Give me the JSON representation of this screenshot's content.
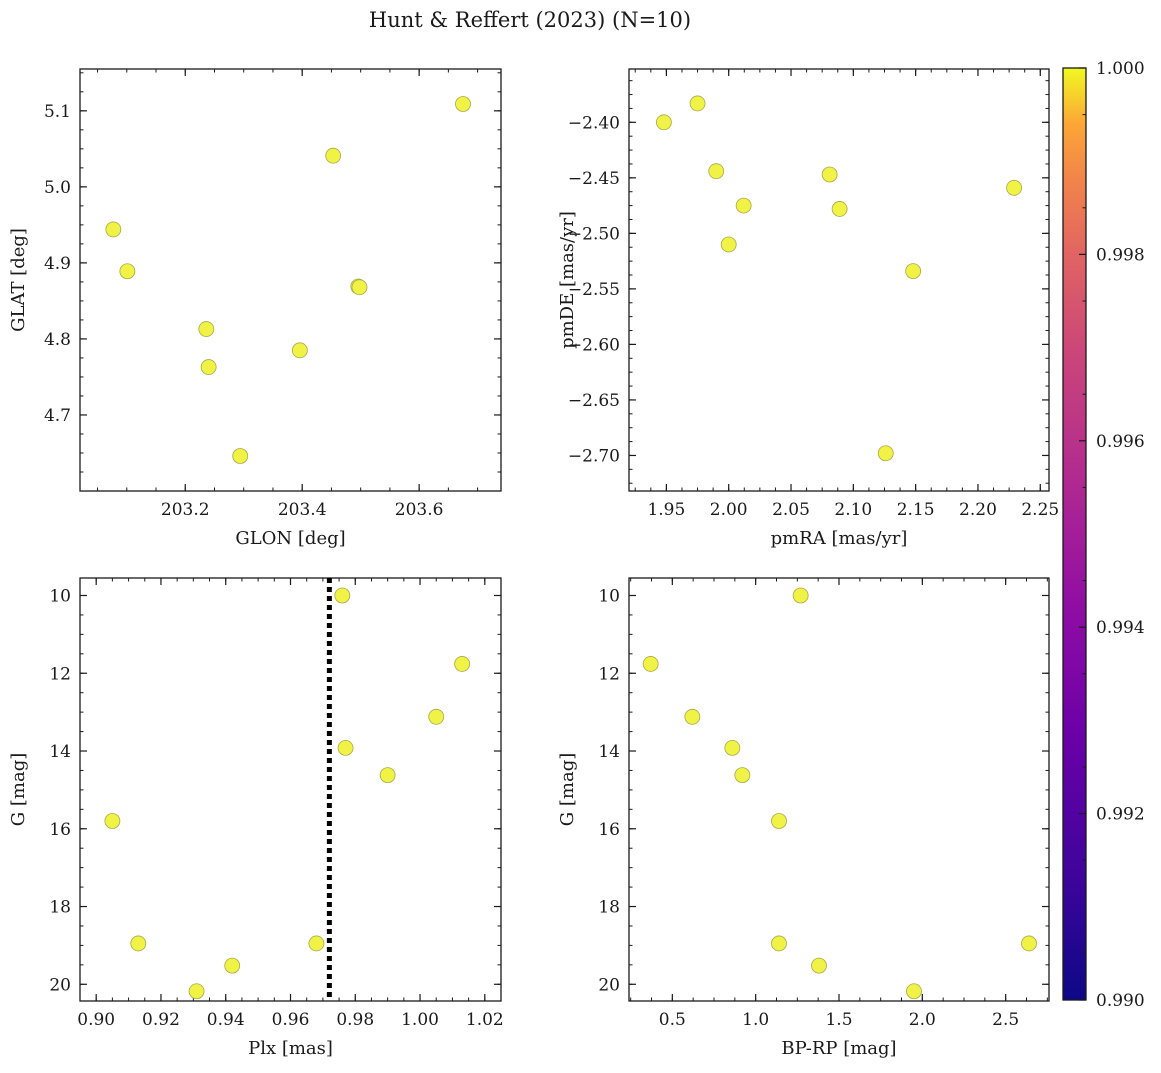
{
  "figure": {
    "suptitle": "Hunt & Reffert (2023) (N=10)"
  },
  "colorbar": {
    "colormap": "plasma",
    "range": [
      0.99,
      1.0
    ],
    "ticks": [
      "0.990",
      "0.992",
      "0.994",
      "0.996",
      "0.998",
      "1.000"
    ]
  },
  "chart_data": [
    {
      "type": "scatter",
      "id": "glon-glat",
      "xlabel": "GLON [deg]",
      "ylabel": "GLAT [deg]",
      "xlim": [
        203.02,
        203.74
      ],
      "ylim": [
        4.6,
        5.155
      ],
      "xticks": [
        203.2,
        203.4,
        203.6
      ],
      "xtick_labels": [
        "203.2",
        "203.4",
        "203.6"
      ],
      "yticks": [
        4.7,
        4.8,
        4.9,
        5.0,
        5.1
      ],
      "ytick_labels": [
        "4.7",
        "4.8",
        "4.9",
        "5.0",
        "5.1"
      ],
      "points": [
        {
          "x": 203.077,
          "y": 4.944
        },
        {
          "x": 203.101,
          "y": 4.889
        },
        {
          "x": 203.236,
          "y": 4.813
        },
        {
          "x": 203.24,
          "y": 4.763
        },
        {
          "x": 203.294,
          "y": 4.646
        },
        {
          "x": 203.396,
          "y": 4.785
        },
        {
          "x": 203.453,
          "y": 5.041
        },
        {
          "x": 203.496,
          "y": 4.869
        },
        {
          "x": 203.498,
          "y": 4.868
        },
        {
          "x": 203.675,
          "y": 5.109
        }
      ]
    },
    {
      "type": "scatter",
      "id": "pmra-pmde",
      "xlabel": "pmRA [mas/yr]",
      "ylabel": "pmDE [mas/yr]",
      "xlim": [
        1.92,
        2.257
      ],
      "ylim": [
        -2.732,
        -2.352
      ],
      "xticks": [
        1.95,
        2.0,
        2.05,
        2.1,
        2.15,
        2.2,
        2.25
      ],
      "xtick_labels": [
        "1.95",
        "2.00",
        "2.05",
        "2.10",
        "2.15",
        "2.20",
        "2.25"
      ],
      "yticks": [
        -2.4,
        -2.45,
        -2.5,
        -2.55,
        -2.6,
        -2.65,
        -2.7
      ],
      "ytick_labels": [
        "−2.40",
        "−2.45",
        "−2.50",
        "−2.55",
        "−2.60",
        "−2.65",
        "−2.70"
      ],
      "points": [
        {
          "x": 1.948,
          "y": -2.4
        },
        {
          "x": 1.975,
          "y": -2.383
        },
        {
          "x": 1.99,
          "y": -2.444
        },
        {
          "x": 2.0,
          "y": -2.51
        },
        {
          "x": 2.012,
          "y": -2.475
        },
        {
          "x": 2.081,
          "y": -2.447
        },
        {
          "x": 2.089,
          "y": -2.478
        },
        {
          "x": 2.126,
          "y": -2.698
        },
        {
          "x": 2.148,
          "y": -2.534
        },
        {
          "x": 2.229,
          "y": -2.459
        }
      ]
    },
    {
      "type": "scatter",
      "id": "plx-g",
      "xlabel": "Plx [mas]",
      "ylabel": "G [mag]",
      "xlim": [
        0.895,
        1.025
      ],
      "ylim": [
        20.43,
        9.55
      ],
      "xticks": [
        0.9,
        0.92,
        0.94,
        0.96,
        0.98,
        1.0,
        1.02
      ],
      "xtick_labels": [
        "0.90",
        "0.92",
        "0.94",
        "0.96",
        "0.98",
        "1.00",
        "1.02"
      ],
      "yticks": [
        10,
        12,
        14,
        16,
        18,
        20
      ],
      "ytick_labels": [
        "10",
        "12",
        "14",
        "16",
        "18",
        "20"
      ],
      "vline": {
        "x": 0.972,
        "style": "dotted",
        "color": "#000000"
      },
      "points": [
        {
          "x": 0.905,
          "y": 15.8
        },
        {
          "x": 0.913,
          "y": 18.95
        },
        {
          "x": 0.931,
          "y": 20.18
        },
        {
          "x": 0.942,
          "y": 19.52
        },
        {
          "x": 0.968,
          "y": 18.95
        },
        {
          "x": 0.976,
          "y": 10.0
        },
        {
          "x": 0.977,
          "y": 13.92
        },
        {
          "x": 0.99,
          "y": 14.62
        },
        {
          "x": 1.005,
          "y": 13.12
        },
        {
          "x": 1.013,
          "y": 11.76
        }
      ]
    },
    {
      "type": "scatter",
      "id": "bprp-g",
      "xlabel": "BP-RP [mag]",
      "ylabel": "G [mag]",
      "xlim": [
        0.24,
        2.76
      ],
      "ylim": [
        20.43,
        9.55
      ],
      "xticks": [
        0.5,
        1.0,
        1.5,
        2.0,
        2.5
      ],
      "xtick_labels": [
        "0.5",
        "1.0",
        "1.5",
        "2.0",
        "2.5"
      ],
      "yticks": [
        10,
        12,
        14,
        16,
        18,
        20
      ],
      "ytick_labels": [
        "10",
        "12",
        "14",
        "16",
        "18",
        "20"
      ],
      "points": [
        {
          "x": 0.37,
          "y": 11.76
        },
        {
          "x": 0.62,
          "y": 13.12
        },
        {
          "x": 0.86,
          "y": 13.92
        },
        {
          "x": 0.92,
          "y": 14.62
        },
        {
          "x": 1.14,
          "y": 15.8
        },
        {
          "x": 1.14,
          "y": 18.95
        },
        {
          "x": 1.27,
          "y": 10.0
        },
        {
          "x": 1.38,
          "y": 19.52
        },
        {
          "x": 1.95,
          "y": 20.18
        },
        {
          "x": 2.64,
          "y": 18.95
        }
      ]
    }
  ],
  "style": {
    "marker_fill": "#f0f245",
    "marker_edge": "#a8a84a",
    "axis_color": "#1a1a1a"
  }
}
